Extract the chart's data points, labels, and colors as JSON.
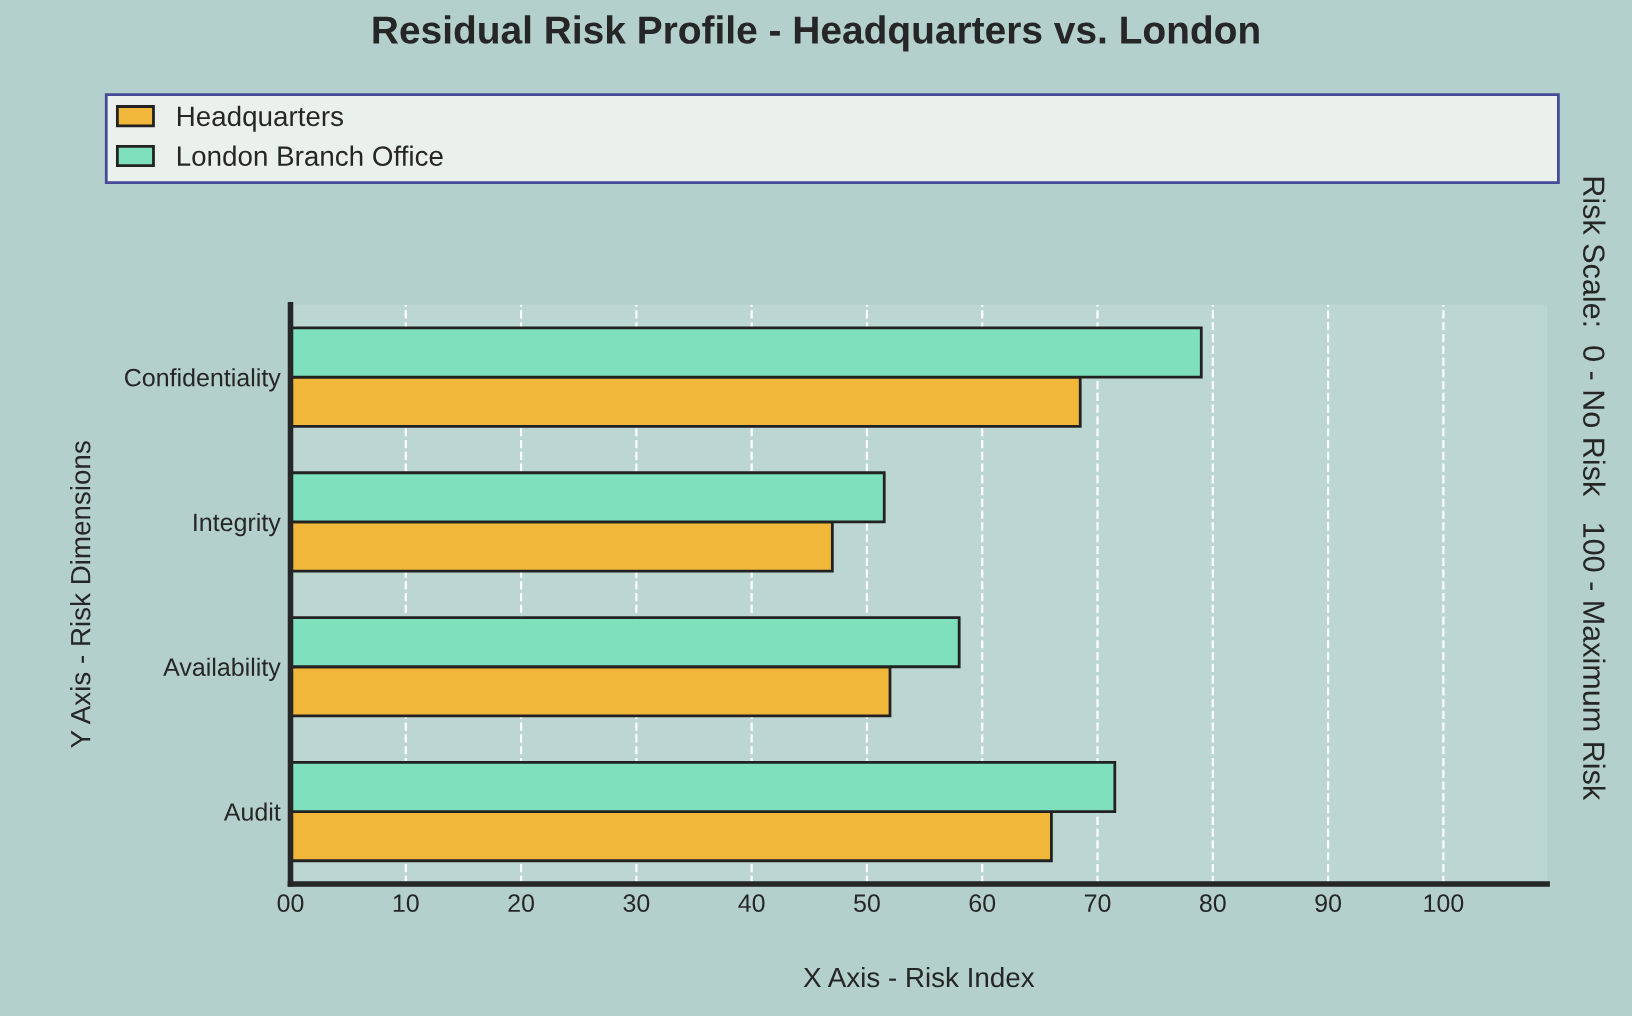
{
  "chart_data": {
    "type": "bar",
    "orientation": "horizontal",
    "title": "Residual Risk Profile - Headquarters vs. London",
    "xlabel": "X Axis - Risk Index",
    "ylabel": "Y Axis - Risk Dimensions",
    "categories": [
      "Confidentiality",
      "Integrity",
      "Availability",
      "Audit"
    ],
    "series": [
      {
        "name": "Headquarters",
        "color": "#f0b73a",
        "values": [
          68.5,
          47,
          52,
          66
        ]
      },
      {
        "name": "London Branch Office",
        "color": "#7fe0bd",
        "values": [
          79,
          51.5,
          58,
          71.5
        ]
      }
    ],
    "xlim": [
      0,
      109
    ],
    "xticks": [
      {
        "value": 0,
        "label": "00"
      },
      10,
      20,
      30,
      40,
      50,
      60,
      70,
      80,
      90,
      100
    ],
    "grid": "x",
    "legend": "top",
    "annotations": [
      "Risk Scale:  0 - No Risk   100 - Maximum Risk"
    ]
  }
}
